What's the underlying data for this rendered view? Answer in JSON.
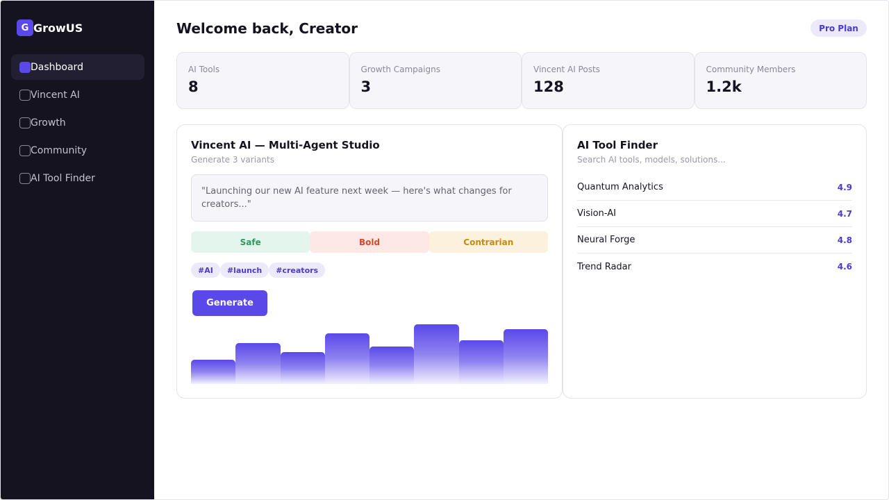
{
  "brand": {
    "logo_letter": "G",
    "name": "GrowUS"
  },
  "sidebar": {
    "items": [
      {
        "label": "Dashboard",
        "active": true
      },
      {
        "label": "Vincent AI",
        "active": false
      },
      {
        "label": "Growth",
        "active": false
      },
      {
        "label": "Community",
        "active": false
      },
      {
        "label": "AI Tool Finder",
        "active": false
      }
    ]
  },
  "header": {
    "title": "Welcome back, Creator",
    "plan_badge": "Pro Plan"
  },
  "stats": [
    {
      "label": "AI Tools",
      "value": "8"
    },
    {
      "label": "Growth Campaigns",
      "value": "3"
    },
    {
      "label": "Vincent AI Posts",
      "value": "128"
    },
    {
      "label": "Community Members",
      "value": "1.2k"
    }
  ],
  "studio": {
    "title": "Vincent AI — Multi-Agent Studio",
    "subtitle": "Generate 3 variants",
    "prompt": "\"Launching our new AI feature next week — here's what changes for creators...\"",
    "variants": [
      "Safe",
      "Bold",
      "Contrarian"
    ],
    "tags": [
      "#AI",
      "#launch",
      "#creators"
    ],
    "generate_label": "Generate",
    "chart_data": {
      "type": "bar",
      "values": [
        35,
        58,
        45,
        72,
        53,
        85,
        62,
        78
      ],
      "ylim": [
        0,
        85
      ]
    }
  },
  "finder": {
    "title": "AI Tool Finder",
    "search_placeholder": "Search AI tools, models, solutions...",
    "tools": [
      {
        "name": "Quantum Analytics",
        "score": "4.9"
      },
      {
        "name": "Vision-AI",
        "score": "4.7"
      },
      {
        "name": "Neural Forge",
        "score": "4.8"
      },
      {
        "name": "Trend Radar",
        "score": "4.6"
      }
    ]
  },
  "colors": {
    "accent": "#5a48e8",
    "sidebar_bg": "#15131f",
    "safe": "#2e9a5f",
    "bold": "#cf4b2f",
    "contrarian": "#c58a13"
  }
}
